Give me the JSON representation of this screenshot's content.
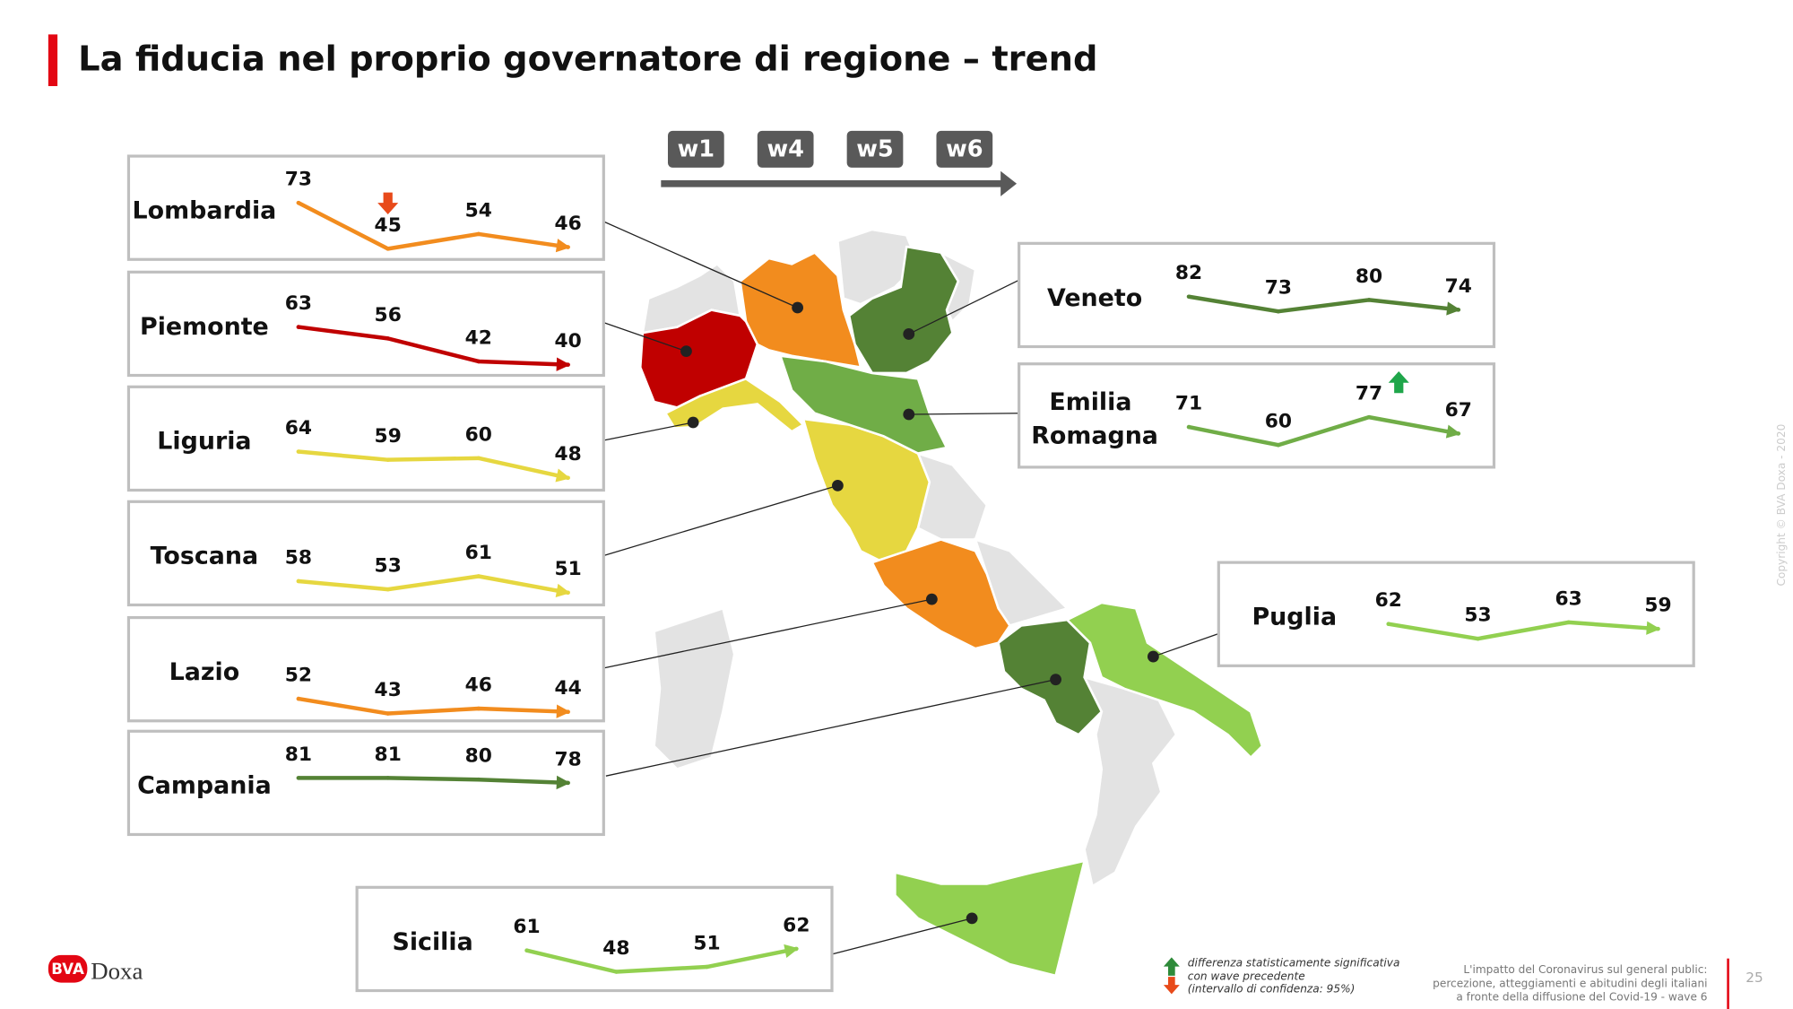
{
  "title": "La fiducia nel proprio governatore di regione – trend",
  "waves": [
    "w1",
    "w4",
    "w5",
    "w6"
  ],
  "chart_data": [
    {
      "type": "line",
      "title": "Lombardia",
      "color": "#f28c1e",
      "values": [
        73,
        45,
        54,
        46
      ],
      "significant": [
        null,
        "down",
        null,
        null
      ],
      "ylim": [
        42,
        77
      ]
    },
    {
      "type": "line",
      "title": "Piemonte",
      "color": "#c00000",
      "values": [
        63,
        56,
        42,
        40
      ],
      "ylim": [
        37,
        72
      ]
    },
    {
      "type": "line",
      "title": "Liguria",
      "color": "#e6d740",
      "values": [
        64,
        59,
        60,
        48
      ],
      "ylim": [
        44,
        79
      ]
    },
    {
      "type": "line",
      "title": "Toscana",
      "color": "#e6d740",
      "values": [
        58,
        53,
        61,
        51
      ],
      "ylim": [
        47,
        82
      ]
    },
    {
      "type": "line",
      "title": "Lazio",
      "color": "#f28c1e",
      "values": [
        52,
        43,
        46,
        44
      ],
      "ylim": [
        42,
        77
      ]
    },
    {
      "type": "line",
      "title": "Campania",
      "color": "#548235",
      "values": [
        81,
        81,
        80,
        78
      ],
      "ylim": [
        50,
        85
      ]
    },
    {
      "type": "line",
      "title": "Veneto",
      "color": "#548235",
      "values": [
        82,
        73,
        80,
        74
      ],
      "ylim": [
        55,
        90
      ]
    },
    {
      "type": "line",
      "title": "Emilia Romagna",
      "color": "#70ad47",
      "values": [
        71,
        60,
        77,
        67
      ],
      "significant": [
        null,
        null,
        "up",
        null
      ],
      "ylim": [
        50,
        85
      ]
    },
    {
      "type": "line",
      "title": "Puglia",
      "color": "#92d050",
      "values": [
        62,
        53,
        63,
        59
      ],
      "ylim": [
        40,
        75
      ]
    },
    {
      "type": "line",
      "title": "Sicilia",
      "color": "#92d050",
      "values": [
        61,
        48,
        51,
        62
      ],
      "ylim": [
        40,
        75
      ]
    }
  ],
  "legend": [
    "differenza statisticamente significativa",
    "con wave precedente",
    "(intervallo di confidenza: 95%)"
  ],
  "footer": [
    "L'impatto del Coronavirus sul general public:",
    "percezione, atteggiamenti e abitudini degli italiani",
    "a fronte della diffusione del Covid-19  -  wave 6"
  ],
  "logo": {
    "mark": "BVA",
    "name": "Doxa"
  },
  "copyright": "Copyright © BVA Doxa - 2020",
  "page_number": "25"
}
